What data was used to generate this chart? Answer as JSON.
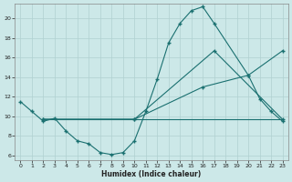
{
  "xlabel": "Humidex (Indice chaleur)",
  "bg_color": "#cce8e8",
  "grid_color": "#b0d0d0",
  "line_color": "#1a7070",
  "xlim": [
    -0.5,
    23.5
  ],
  "ylim": [
    5.5,
    21.5
  ],
  "xticks": [
    0,
    1,
    2,
    3,
    4,
    5,
    6,
    7,
    8,
    9,
    10,
    11,
    12,
    13,
    14,
    15,
    16,
    17,
    18,
    19,
    20,
    21,
    22,
    23
  ],
  "yticks": [
    6,
    8,
    10,
    12,
    14,
    16,
    18,
    20
  ],
  "series": [
    {
      "x": [
        0,
        1,
        2,
        3,
        4,
        5,
        6,
        7,
        8,
        9,
        10,
        11,
        12,
        13,
        14,
        15,
        16,
        17,
        20,
        21,
        22,
        23
      ],
      "y": [
        11.5,
        10.5,
        9.5,
        9.8,
        8.5,
        7.5,
        7.2,
        6.3,
        6.1,
        6.3,
        7.5,
        10.5,
        13.8,
        17.5,
        19.5,
        20.8,
        21.2,
        19.5,
        14.2,
        11.8,
        10.5,
        9.5
      ]
    },
    {
      "x": [
        2,
        23
      ],
      "y": [
        9.7,
        9.7
      ]
    },
    {
      "x": [
        2,
        10,
        16,
        20,
        23
      ],
      "y": [
        9.7,
        9.7,
        13.0,
        14.2,
        16.7
      ]
    },
    {
      "x": [
        2,
        10,
        17,
        23
      ],
      "y": [
        9.7,
        9.7,
        16.7,
        9.7
      ]
    }
  ]
}
